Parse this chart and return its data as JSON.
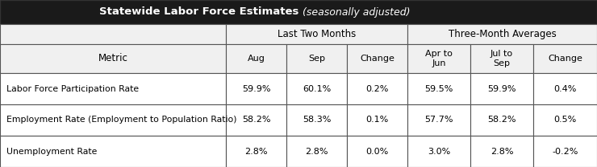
{
  "title_bold": "Statewide Labor Force Estimates",
  "title_italic": " (seasonally adjusted)",
  "title_bg": "#1a1a1a",
  "title_fg": "#ffffff",
  "header_bg": "#f0f0f0",
  "col_group1": "Last Two Months",
  "col_group2": "Three-Month Averages",
  "col_headers": [
    "Aug",
    "Sep",
    "Change",
    "Apr to\nJun",
    "Jul to\nSep",
    "Change"
  ],
  "row_label_header": "Metric",
  "rows": [
    {
      "label": "Labor Force Participation Rate",
      "values": [
        "59.9%",
        "60.1%",
        "0.2%",
        "59.5%",
        "59.9%",
        "0.4%"
      ]
    },
    {
      "label": "Employment Rate (Employment to Population Ratio)",
      "values": [
        "58.2%",
        "58.3%",
        "0.1%",
        "57.7%",
        "58.2%",
        "0.5%"
      ]
    },
    {
      "label": "Unemployment Rate",
      "values": [
        "2.8%",
        "2.8%",
        "0.0%",
        "3.0%",
        "2.8%",
        "-0.2%"
      ]
    }
  ],
  "figsize": [
    7.4,
    2.08
  ],
  "dpi": 100
}
